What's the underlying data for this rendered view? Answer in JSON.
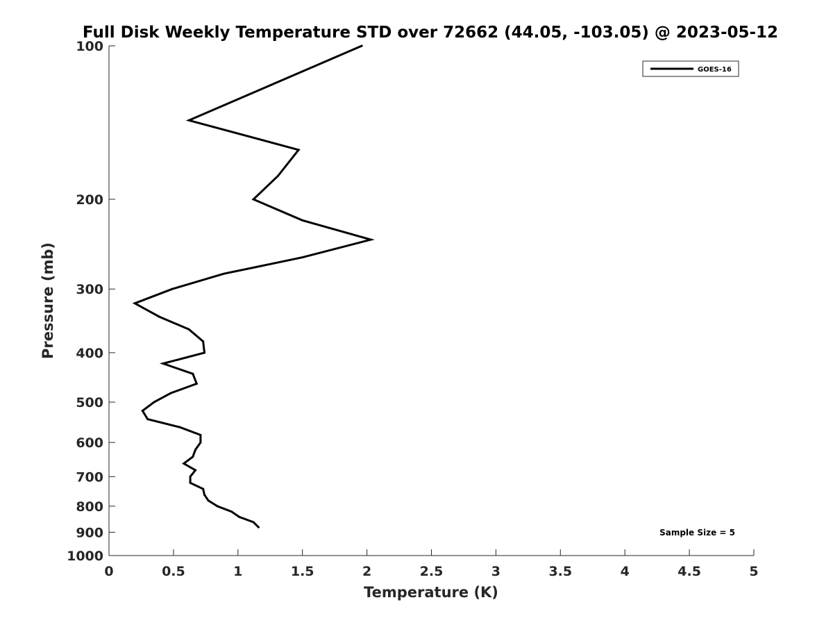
{
  "chart_data": {
    "type": "line",
    "title": "Full Disk Weekly Temperature STD over 72662 (44.05, -103.05) @ 2023-05-12",
    "xlabel": "Temperature (K)",
    "ylabel": "Pressure (mb)",
    "xlim": [
      0,
      5
    ],
    "ylim": [
      100,
      1000
    ],
    "y_scale": "log",
    "y_reversed": true,
    "x_ticks": [
      "0",
      "0.5",
      "1",
      "1.5",
      "2",
      "2.5",
      "3",
      "3.5",
      "4",
      "4.5",
      "5"
    ],
    "y_ticks": [
      "100",
      "200",
      "300",
      "400",
      "500",
      "600",
      "700",
      "800",
      "900",
      "1000"
    ],
    "grid": false,
    "legend_position": "top-right",
    "series": [
      {
        "name": "GOES-16",
        "color": "#000000",
        "points": [
          {
            "x": 1.96,
            "y": 100
          },
          {
            "x": 0.62,
            "y": 140
          },
          {
            "x": 1.47,
            "y": 160
          },
          {
            "x": 1.31,
            "y": 180
          },
          {
            "x": 1.12,
            "y": 200
          },
          {
            "x": 1.5,
            "y": 220
          },
          {
            "x": 2.03,
            "y": 240
          },
          {
            "x": 1.5,
            "y": 260
          },
          {
            "x": 0.89,
            "y": 280
          },
          {
            "x": 0.49,
            "y": 300
          },
          {
            "x": 0.2,
            "y": 320
          },
          {
            "x": 0.39,
            "y": 340
          },
          {
            "x": 0.62,
            "y": 360
          },
          {
            "x": 0.73,
            "y": 380
          },
          {
            "x": 0.74,
            "y": 400
          },
          {
            "x": 0.42,
            "y": 420
          },
          {
            "x": 0.65,
            "y": 440
          },
          {
            "x": 0.68,
            "y": 460
          },
          {
            "x": 0.48,
            "y": 480
          },
          {
            "x": 0.35,
            "y": 500
          },
          {
            "x": 0.26,
            "y": 520
          },
          {
            "x": 0.3,
            "y": 540
          },
          {
            "x": 0.55,
            "y": 560
          },
          {
            "x": 0.71,
            "y": 580
          },
          {
            "x": 0.71,
            "y": 600
          },
          {
            "x": 0.67,
            "y": 620
          },
          {
            "x": 0.65,
            "y": 640
          },
          {
            "x": 0.58,
            "y": 660
          },
          {
            "x": 0.67,
            "y": 680
          },
          {
            "x": 0.63,
            "y": 700
          },
          {
            "x": 0.63,
            "y": 720
          },
          {
            "x": 0.73,
            "y": 740
          },
          {
            "x": 0.74,
            "y": 760
          },
          {
            "x": 0.77,
            "y": 780
          },
          {
            "x": 0.84,
            "y": 800
          },
          {
            "x": 0.95,
            "y": 820
          },
          {
            "x": 1.01,
            "y": 840
          },
          {
            "x": 1.12,
            "y": 860
          },
          {
            "x": 1.16,
            "y": 880
          }
        ]
      }
    ],
    "annotations": [
      "Sample Size = 5"
    ]
  }
}
